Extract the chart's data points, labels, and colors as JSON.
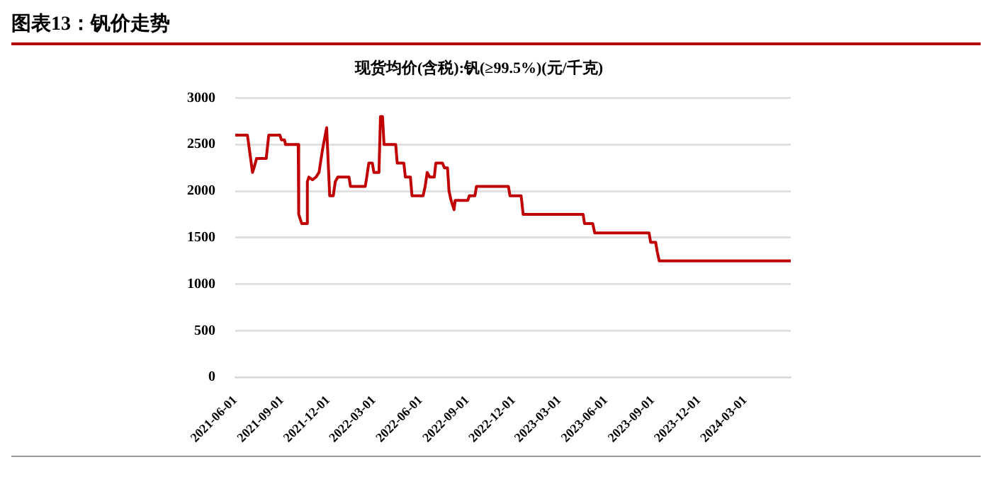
{
  "chart_data": {
    "type": "line",
    "title": "图表13：钒价走势",
    "subtitle": "现货均价(含税):钒(≥99.5%)(元/千克)",
    "x": [
      "2021-06-01",
      "2021-06-25",
      "2021-06-30",
      "2021-07-05",
      "2021-07-08",
      "2021-07-13",
      "2021-08-01",
      "2021-08-06",
      "2021-08-28",
      "2021-08-31",
      "2021-09-06",
      "2021-09-08",
      "2021-10-03",
      "2021-10-04",
      "2021-10-07",
      "2021-10-10",
      "2021-10-19",
      "2021-10-21",
      "2021-10-24",
      "2021-10-31",
      "2021-11-07",
      "2021-11-13",
      "2021-11-20",
      "2021-11-28",
      "2021-12-04",
      "2021-12-11",
      "2021-12-15",
      "2021-12-20",
      "2022-01-11",
      "2022-01-14",
      "2022-02-12",
      "2022-02-15",
      "2022-02-19",
      "2022-02-26",
      "2022-03-01",
      "2022-03-11",
      "2022-03-14",
      "2022-03-18",
      "2022-03-21",
      "2022-04-13",
      "2022-04-16",
      "2022-04-29",
      "2022-05-02",
      "2022-05-12",
      "2022-05-15",
      "2022-06-06",
      "2022-06-10",
      "2022-06-14",
      "2022-06-19",
      "2022-06-28",
      "2022-07-01",
      "2022-07-14",
      "2022-07-18",
      "2022-07-24",
      "2022-07-27",
      "2022-07-31",
      "2022-08-06",
      "2022-08-08",
      "2022-09-02",
      "2022-09-05",
      "2022-09-16",
      "2022-09-19",
      "2022-11-21",
      "2022-11-24",
      "2022-12-16",
      "2022-12-20",
      "2023-04-17",
      "2023-04-20",
      "2023-05-06",
      "2023-05-10",
      "2023-08-25",
      "2023-08-28",
      "2023-09-07",
      "2023-09-10",
      "2023-09-14",
      "2024-05-30"
    ],
    "series": [
      {
        "color": "#c00000",
        "values": [
          2600,
          2600,
          2400,
          2200,
          2250,
          2350,
          2350,
          2600,
          2600,
          2550,
          2550,
          2500,
          2500,
          1750,
          1700,
          1650,
          1650,
          2100,
          2150,
          2120,
          2150,
          2200,
          2450,
          2680,
          1950,
          1950,
          2100,
          2150,
          2150,
          2050,
          2050,
          2150,
          2300,
          2300,
          2200,
          2200,
          2800,
          2800,
          2500,
          2500,
          2300,
          2300,
          2150,
          2150,
          1950,
          1950,
          2050,
          2200,
          2150,
          2150,
          2300,
          2300,
          2250,
          2250,
          2000,
          1900,
          1800,
          1900,
          1900,
          1950,
          1950,
          2050,
          2050,
          1950,
          1950,
          1750,
          1750,
          1650,
          1650,
          1550,
          1550,
          1450,
          1450,
          1350,
          1250,
          1250
        ]
      }
    ],
    "xlim": [
      "2021-06-01",
      "2024-05-30"
    ],
    "xticks": [
      "2021-06-01",
      "2021-09-01",
      "2021-12-01",
      "2022-03-01",
      "2022-06-01",
      "2022-09-01",
      "2022-12-01",
      "2023-03-01",
      "2023-06-01",
      "2023-09-01",
      "2023-12-01",
      "2024-03-01"
    ],
    "ylim": [
      0,
      3000
    ],
    "yticks": [
      0,
      500,
      1000,
      1500,
      2000,
      2500,
      3000
    ],
    "grid": "y",
    "legend": false,
    "marker": "none",
    "line_style": "solid"
  }
}
